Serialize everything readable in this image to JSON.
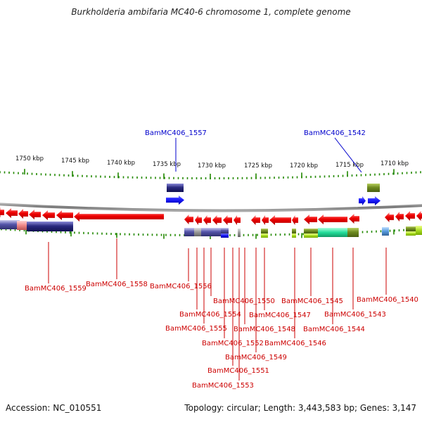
{
  "title": "Burkholderia ambifaria MC40-6 chromosome 1, complete genome",
  "footer": {
    "accession": "Accession: NC_010551",
    "stats": "Topology: circular; Length: 3,443,583 bp; Genes: 3,147"
  },
  "colors": {
    "forward_gene_label": "#0000cc",
    "reverse_gene_label": "#cc0000",
    "gene_red": "#ee0000",
    "gene_blue": "#1a1aff",
    "navy_feature": "#2a2a80",
    "olive_feature": "#6f8c20",
    "green_feature": "#99cc11",
    "teal_feature": "#22dd99",
    "tick_green": "#228800",
    "backbone_gray": "#888888"
  },
  "scale_labels": [
    "1750 kbp",
    "1745 kbp",
    "1740 kbp",
    "1735 kbp",
    "1730 kbp",
    "1725 kbp",
    "1720 kbp",
    "1715 kbp",
    "1710 kbp"
  ],
  "forward_labels": [
    "BamMC406_1557",
    "BamMC406_1542"
  ],
  "reverse_labels": [
    "BamMC406_1559",
    "BamMC406_1558",
    "BamMC406_1556",
    "BamMC406_1554",
    "BamMC406_1555",
    "BamMC406_1550",
    "BamMC406_1552",
    "BamMC406_1551",
    "BamMC406_1553",
    "BamMC406_1548",
    "BamMC406_1549",
    "BamMC406_1547",
    "BamMC406_1546",
    "BamMC406_1545",
    "BamMC406_1544",
    "BamMC406_1543",
    "BamMC406_1540"
  ]
}
